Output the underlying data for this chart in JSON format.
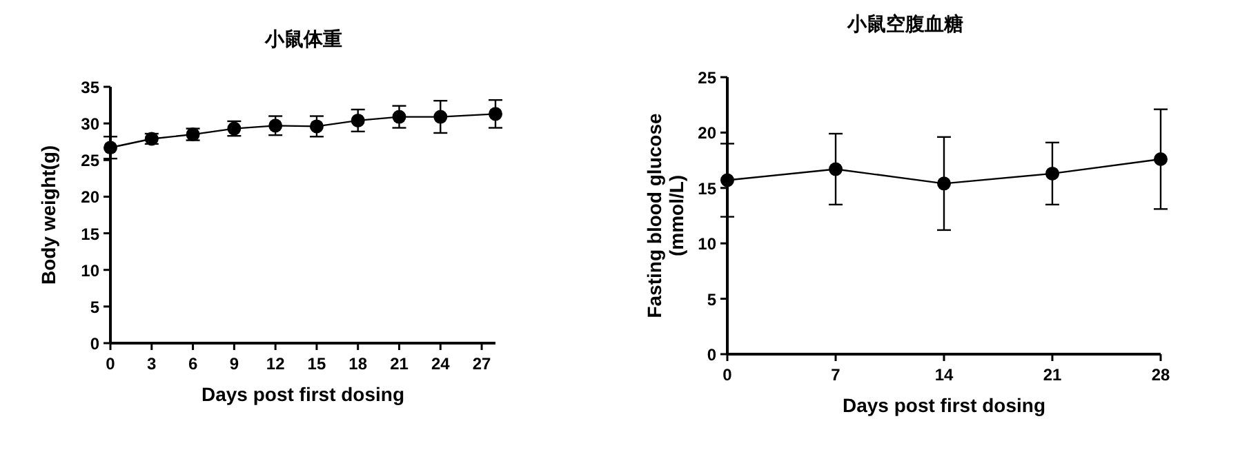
{
  "chart_data": [
    {
      "type": "line",
      "title": "小鼠体重",
      "xlabel": "Days post first dosing",
      "ylabel": "Body weight(g)",
      "x": [
        0,
        3,
        6,
        9,
        12,
        15,
        18,
        21,
        24,
        28
      ],
      "series": [
        {
          "color": "#000000",
          "values": [
            26.7,
            27.9,
            28.5,
            29.3,
            29.7,
            29.6,
            30.4,
            30.9,
            30.9,
            31.3
          ],
          "errors": [
            1.5,
            0.7,
            0.8,
            1.0,
            1.3,
            1.4,
            1.5,
            1.5,
            2.2,
            1.9
          ]
        }
      ],
      "xlim": [
        0,
        28
      ],
      "xticks": [
        0,
        3,
        6,
        9,
        12,
        15,
        18,
        21,
        24,
        27
      ],
      "ylim": [
        0,
        35
      ],
      "yticks": [
        0,
        5,
        10,
        15,
        20,
        25,
        30,
        35
      ],
      "marker": "circle",
      "line_style": "solid",
      "grid": false
    },
    {
      "type": "line",
      "title": "小鼠空腹血糖",
      "xlabel": "Days post first dosing",
      "ylabel": "Fasting blood glucose\n(mmol/L)",
      "x": [
        0,
        7,
        14,
        21,
        28
      ],
      "series": [
        {
          "color": "#000000",
          "values": [
            15.7,
            16.7,
            15.4,
            16.3,
            17.6
          ],
          "errors": [
            3.3,
            3.2,
            4.2,
            2.8,
            4.5
          ]
        }
      ],
      "xlim": [
        0,
        28
      ],
      "xticks": [
        0,
        7,
        14,
        21,
        28
      ],
      "ylim": [
        0,
        25
      ],
      "yticks": [
        0,
        5,
        10,
        15,
        20,
        25
      ],
      "marker": "circle",
      "line_style": "solid",
      "grid": false
    }
  ]
}
